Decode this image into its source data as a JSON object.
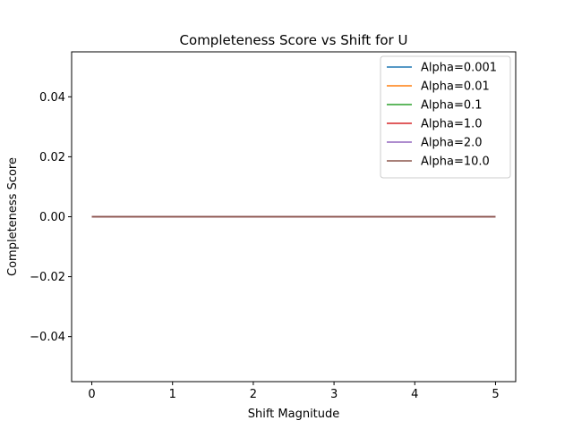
{
  "chart_data": {
    "type": "line",
    "title": "Completeness Score vs Shift for U",
    "xlabel": "Shift Magnitude",
    "ylabel": "Completeness Score",
    "xlim": [
      -0.25,
      5.25
    ],
    "ylim": [
      -0.055,
      0.055
    ],
    "xticks": [
      0,
      1,
      2,
      3,
      4,
      5
    ],
    "xtick_labels": [
      "0",
      "1",
      "2",
      "3",
      "4",
      "5"
    ],
    "yticks": [
      -0.04,
      -0.02,
      0.0,
      0.02,
      0.04
    ],
    "ytick_labels": [
      "−0.04",
      "−0.02",
      "0.00",
      "0.02",
      "0.04"
    ],
    "x": [
      0,
      1,
      2,
      3,
      4,
      5
    ],
    "grid": false,
    "legend_position": "top-right",
    "series": [
      {
        "name": "Alpha=0.001",
        "color": "#1f77b4",
        "values": [
          0,
          0,
          0,
          0,
          0,
          0
        ]
      },
      {
        "name": "Alpha=0.01",
        "color": "#ff7f0e",
        "values": [
          0,
          0,
          0,
          0,
          0,
          0
        ]
      },
      {
        "name": "Alpha=0.1",
        "color": "#2ca02c",
        "values": [
          0,
          0,
          0,
          0,
          0,
          0
        ]
      },
      {
        "name": "Alpha=1.0",
        "color": "#d62728",
        "values": [
          0,
          0,
          0,
          0,
          0,
          0
        ]
      },
      {
        "name": "Alpha=2.0",
        "color": "#9467bd",
        "values": [
          0,
          0,
          0,
          0,
          0,
          0
        ]
      },
      {
        "name": "Alpha=10.0",
        "color": "#8c564b",
        "values": [
          0,
          0,
          0,
          0,
          0,
          0
        ]
      }
    ]
  }
}
